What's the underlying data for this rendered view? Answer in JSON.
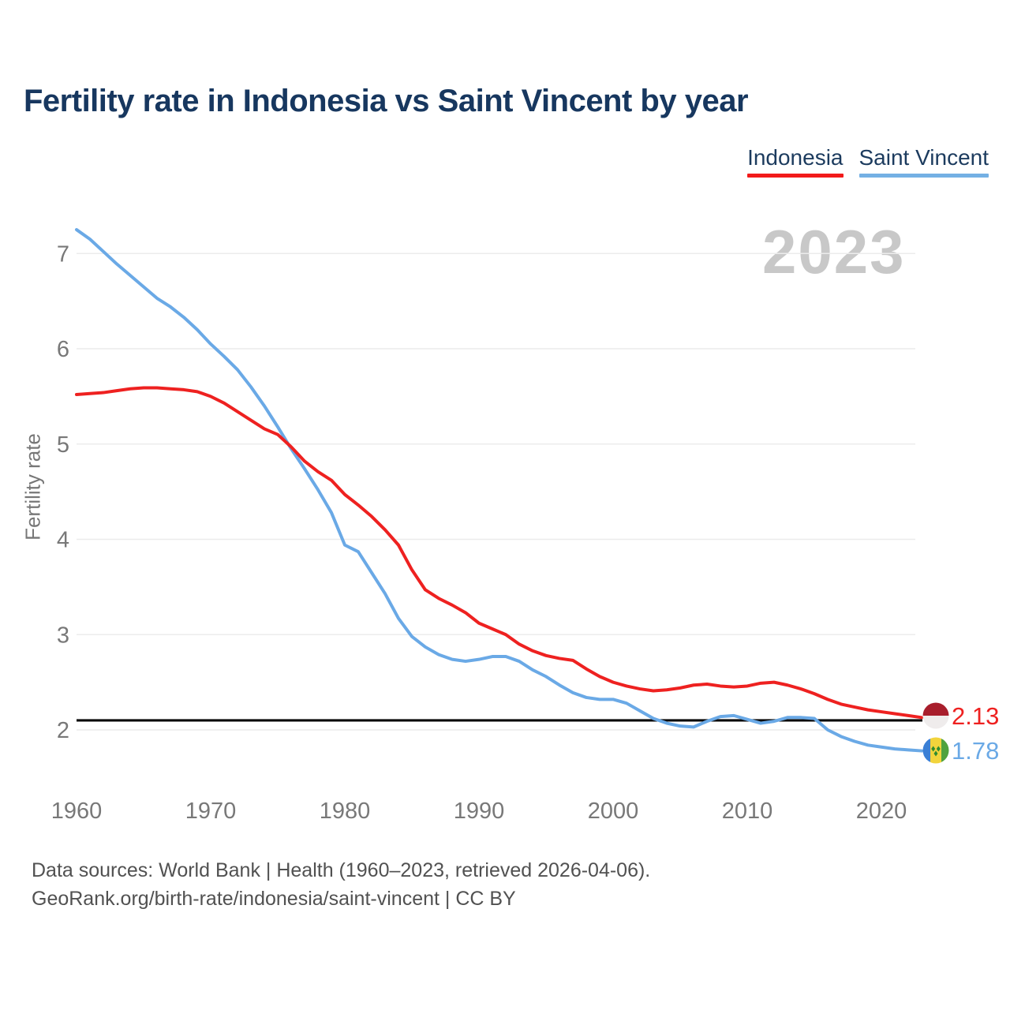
{
  "header": {
    "title": "Fertility rate in Indonesia vs Saint Vincent by year"
  },
  "legend": {
    "items": [
      {
        "label": "Indonesia",
        "color": "#f21a1a"
      },
      {
        "label": "Saint Vincent",
        "color": "#74b0e4"
      }
    ]
  },
  "watermark": "2023",
  "chart_data": {
    "type": "line",
    "title": "Fertility rate in Indonesia vs Saint Vincent by year",
    "xlabel": "",
    "ylabel": "Fertility rate",
    "x_ticks": [
      1960,
      1970,
      1980,
      1990,
      2000,
      2010,
      2020
    ],
    "y_ticks": [
      2,
      3,
      4,
      5,
      6,
      7
    ],
    "xlim": [
      1960,
      2023
    ],
    "ylim": [
      1.6,
      7.45
    ],
    "grid": true,
    "legend_position": "top-right",
    "reference_line": {
      "value": 2.1,
      "color": "#0a0a0a"
    },
    "x": [
      1960,
      1961,
      1962,
      1963,
      1964,
      1965,
      1966,
      1967,
      1968,
      1969,
      1970,
      1971,
      1972,
      1973,
      1974,
      1975,
      1976,
      1977,
      1978,
      1979,
      1980,
      1981,
      1982,
      1983,
      1984,
      1985,
      1986,
      1987,
      1988,
      1989,
      1990,
      1991,
      1992,
      1993,
      1994,
      1995,
      1996,
      1997,
      1998,
      1999,
      2000,
      2001,
      2002,
      2003,
      2004,
      2005,
      2006,
      2007,
      2008,
      2009,
      2010,
      2011,
      2012,
      2013,
      2014,
      2015,
      2016,
      2017,
      2018,
      2019,
      2020,
      2021,
      2022,
      2023
    ],
    "series": [
      {
        "name": "Indonesia",
        "color": "#ee2120",
        "values": [
          5.52,
          5.53,
          5.54,
          5.56,
          5.58,
          5.59,
          5.59,
          5.58,
          5.57,
          5.55,
          5.5,
          5.43,
          5.34,
          5.25,
          5.16,
          5.1,
          4.97,
          4.82,
          4.71,
          4.62,
          4.47,
          4.36,
          4.24,
          4.1,
          3.94,
          3.68,
          3.47,
          3.38,
          3.31,
          3.23,
          3.12,
          3.06,
          3.0,
          2.9,
          2.83,
          2.78,
          2.75,
          2.73,
          2.64,
          2.56,
          2.5,
          2.46,
          2.43,
          2.41,
          2.42,
          2.44,
          2.47,
          2.48,
          2.46,
          2.45,
          2.46,
          2.49,
          2.5,
          2.47,
          2.43,
          2.38,
          2.32,
          2.27,
          2.24,
          2.21,
          2.19,
          2.17,
          2.15,
          2.13
        ]
      },
      {
        "name": "Saint Vincent",
        "color": "#6aa9e6",
        "values": [
          7.25,
          7.15,
          7.02,
          6.89,
          6.77,
          6.65,
          6.53,
          6.44,
          6.33,
          6.2,
          6.05,
          5.92,
          5.78,
          5.6,
          5.4,
          5.18,
          4.95,
          4.74,
          4.52,
          4.28,
          3.94,
          3.87,
          3.65,
          3.43,
          3.17,
          2.98,
          2.87,
          2.79,
          2.74,
          2.72,
          2.74,
          2.77,
          2.77,
          2.72,
          2.63,
          2.56,
          2.47,
          2.39,
          2.34,
          2.32,
          2.32,
          2.28,
          2.2,
          2.12,
          2.07,
          2.04,
          2.03,
          2.09,
          2.14,
          2.15,
          2.11,
          2.07,
          2.09,
          2.13,
          2.13,
          2.12,
          2.0,
          1.93,
          1.88,
          1.84,
          1.82,
          1.8,
          1.79,
          1.78
        ]
      }
    ],
    "end_labels": [
      {
        "series": "Indonesia",
        "value": "2.13"
      },
      {
        "series": "Saint Vincent",
        "value": "1.78"
      }
    ]
  },
  "footer": {
    "line1": "Data sources: World Bank | Health (1960–2023, retrieved 2026-04-06).",
    "line2": "GeoRank.org/birth-rate/indonesia/saint-vincent | CC BY"
  }
}
